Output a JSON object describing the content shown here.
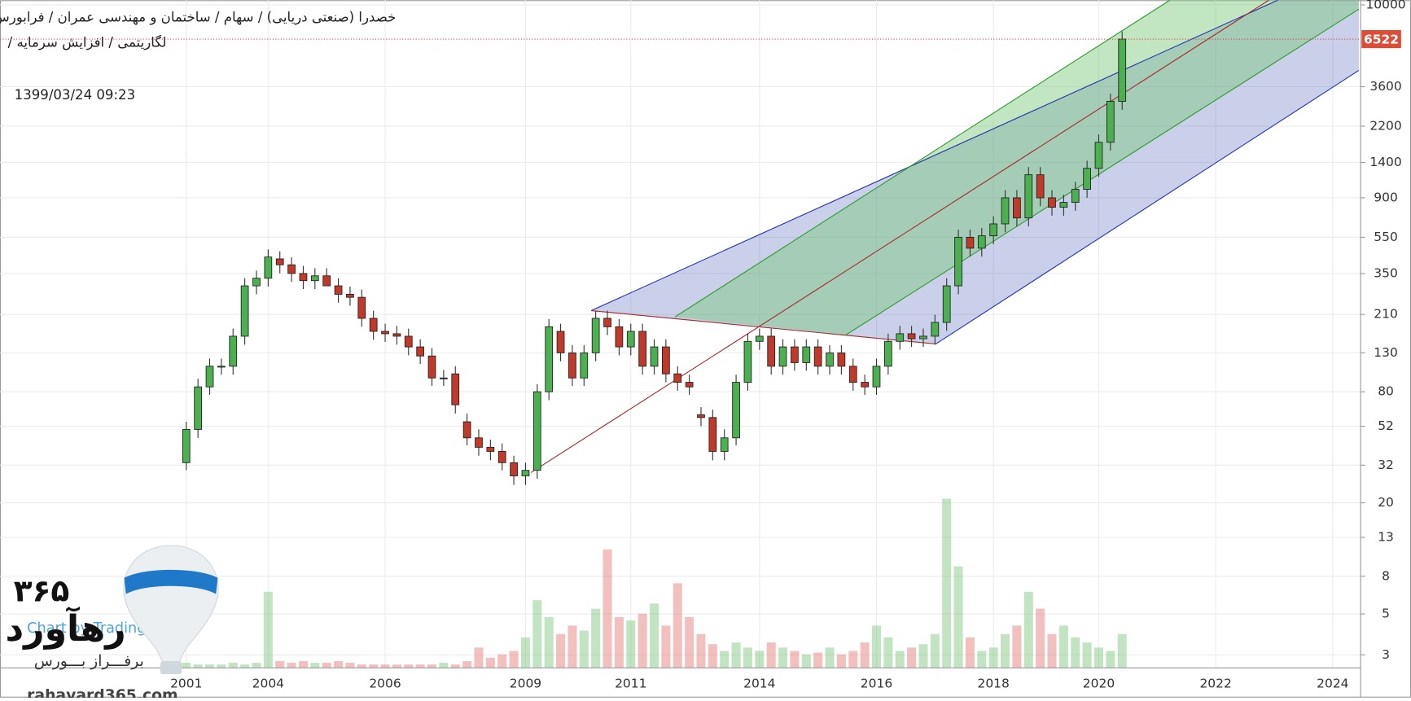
{
  "chart_data": {
    "type": "candlestick",
    "title": "خصدرا (صنعتی دریایی)  /  سهام  /  ساختمان و مهندسی عمران  /  فرابورس",
    "subtitle": "لگاریتمی  /  افزایش سرمایه  /",
    "timestamp": "1399/03/24 09:23",
    "log_scale": true,
    "grid": true,
    "up_color": "#4caf50",
    "down_color": "#c0392b",
    "last_price": 6522,
    "ylim": [
      2.55,
      10600
    ],
    "yticks": [
      3,
      5,
      8,
      13,
      20,
      32,
      52,
      80,
      130,
      210,
      350,
      550,
      900,
      1400,
      2200,
      3600,
      10000
    ],
    "categories": [
      "2001",
      null,
      null,
      null,
      null,
      null,
      null,
      "2004",
      null,
      null,
      null,
      null,
      null,
      null,
      null,
      null,
      null,
      "2006",
      null,
      null,
      null,
      null,
      null,
      null,
      null,
      null,
      null,
      null,
      null,
      "2009",
      null,
      null,
      null,
      null,
      null,
      null,
      null,
      null,
      "2011",
      null,
      null,
      null,
      null,
      null,
      null,
      null,
      null,
      null,
      null,
      "2014",
      null,
      null,
      null,
      null,
      null,
      null,
      null,
      null,
      null,
      "2016",
      null,
      null,
      null,
      null,
      null,
      null,
      null,
      null,
      null,
      "2018",
      null,
      null,
      null,
      null,
      null,
      null,
      null,
      null,
      "2020",
      null,
      null,
      null,
      null,
      null,
      null,
      null,
      null,
      null,
      "2022",
      null,
      null,
      null,
      null,
      null,
      null,
      null,
      null,
      null,
      "2024"
    ],
    "open": [
      33,
      50,
      85,
      110,
      110,
      160,
      300,
      330,
      420,
      390,
      350,
      320,
      340,
      300,
      270,
      260,
      200,
      170,
      165,
      160,
      140,
      125,
      95,
      100,
      55,
      45,
      40,
      38,
      33,
      28,
      30,
      80,
      170,
      130,
      95,
      130,
      200,
      180,
      140,
      170,
      110,
      140,
      100,
      90,
      60,
      58,
      38,
      45,
      90,
      150,
      160,
      110,
      140,
      115,
      140,
      110,
      130,
      110,
      90,
      85,
      110,
      150,
      165,
      155,
      160,
      190,
      300,
      550,
      480,
      560,
      650,
      900,
      700,
      1200,
      900,
      800,
      850,
      1000,
      1300,
      1800,
      3000,
      null,
      null,
      null,
      null,
      null,
      null,
      null,
      null,
      null,
      null,
      null,
      null,
      null,
      null,
      null,
      null,
      null,
      null
    ],
    "close": [
      50,
      85,
      110,
      110,
      160,
      300,
      330,
      430,
      390,
      350,
      320,
      340,
      300,
      270,
      260,
      200,
      170,
      165,
      160,
      140,
      125,
      95,
      95,
      68,
      45,
      40,
      38,
      33,
      28,
      30,
      80,
      180,
      130,
      95,
      130,
      200,
      180,
      140,
      170,
      110,
      140,
      100,
      90,
      85,
      58,
      38,
      45,
      90,
      150,
      160,
      110,
      140,
      115,
      140,
      110,
      130,
      110,
      90,
      85,
      110,
      150,
      165,
      155,
      160,
      190,
      300,
      550,
      480,
      560,
      650,
      900,
      700,
      1200,
      900,
      800,
      850,
      1000,
      1300,
      1800,
      3000,
      6522,
      null,
      null,
      null,
      null,
      null,
      null,
      null,
      null,
      null,
      null,
      null,
      null,
      null,
      null,
      null,
      null,
      null,
      null
    ],
    "high": [
      55,
      94,
      121,
      121,
      176,
      330,
      363,
      473,
      462,
      429,
      385,
      374,
      374,
      330,
      297,
      286,
      220,
      187,
      182,
      176,
      154,
      138,
      105,
      110,
      61,
      50,
      44,
      42,
      36,
      33,
      88,
      198,
      187,
      143,
      143,
      220,
      220,
      198,
      187,
      187,
      154,
      154,
      110,
      99,
      66,
      64,
      50,
      99,
      165,
      176,
      176,
      154,
      154,
      154,
      154,
      143,
      143,
      121,
      99,
      121,
      165,
      182,
      182,
      176,
      209,
      330,
      605,
      605,
      616,
      715,
      990,
      990,
      1320,
      1320,
      990,
      935,
      1100,
      1430,
      1980,
      3300,
      7174,
      null,
      null,
      null,
      null,
      null,
      null,
      null,
      null,
      null,
      null,
      null,
      null,
      null,
      null,
      null,
      null,
      null,
      null
    ],
    "low": [
      30,
      45,
      77,
      99,
      99,
      144,
      270,
      297,
      351,
      315,
      288,
      288,
      306,
      243,
      234,
      180,
      153,
      149,
      144,
      126,
      113,
      86,
      86,
      61,
      41,
      36,
      34,
      30,
      25,
      25,
      27,
      72,
      117,
      86,
      86,
      117,
      162,
      126,
      126,
      99,
      99,
      90,
      81,
      77,
      52,
      34,
      34,
      41,
      81,
      135,
      99,
      99,
      104,
      104,
      99,
      99,
      99,
      81,
      77,
      77,
      99,
      135,
      140,
      140,
      144,
      171,
      270,
      432,
      432,
      504,
      585,
      630,
      630,
      810,
      720,
      720,
      765,
      900,
      1170,
      1620,
      2700,
      null,
      null,
      null,
      null,
      null,
      null,
      null,
      null,
      null,
      null,
      null,
      null,
      null,
      null,
      null,
      null,
      null,
      null
    ],
    "volume": [
      3,
      2,
      2,
      2,
      3,
      2,
      3,
      45,
      4,
      3,
      4,
      3,
      3,
      4,
      3,
      2,
      2,
      2,
      2,
      2,
      2,
      2,
      3,
      2,
      4,
      12,
      6,
      8,
      10,
      18,
      40,
      30,
      20,
      25,
      22,
      35,
      70,
      30,
      28,
      32,
      38,
      25,
      50,
      30,
      20,
      14,
      10,
      15,
      12,
      10,
      15,
      12,
      10,
      8,
      9,
      12,
      8,
      10,
      15,
      25,
      18,
      10,
      12,
      14,
      20,
      100,
      60,
      18,
      10,
      12,
      20,
      25,
      45,
      35,
      20,
      25,
      18,
      15,
      12,
      10,
      20,
      null,
      null,
      null,
      null,
      null,
      null,
      null,
      null,
      null,
      null,
      null,
      null,
      null,
      null,
      null,
      null,
      null,
      null
    ]
  },
  "watermark": {
    "number": "۳۶۵",
    "brand": "رهآورد",
    "slogan": "برفـــراز بـــورس",
    "credit": "Chart by TradingView",
    "site": "rahavard365.com"
  }
}
